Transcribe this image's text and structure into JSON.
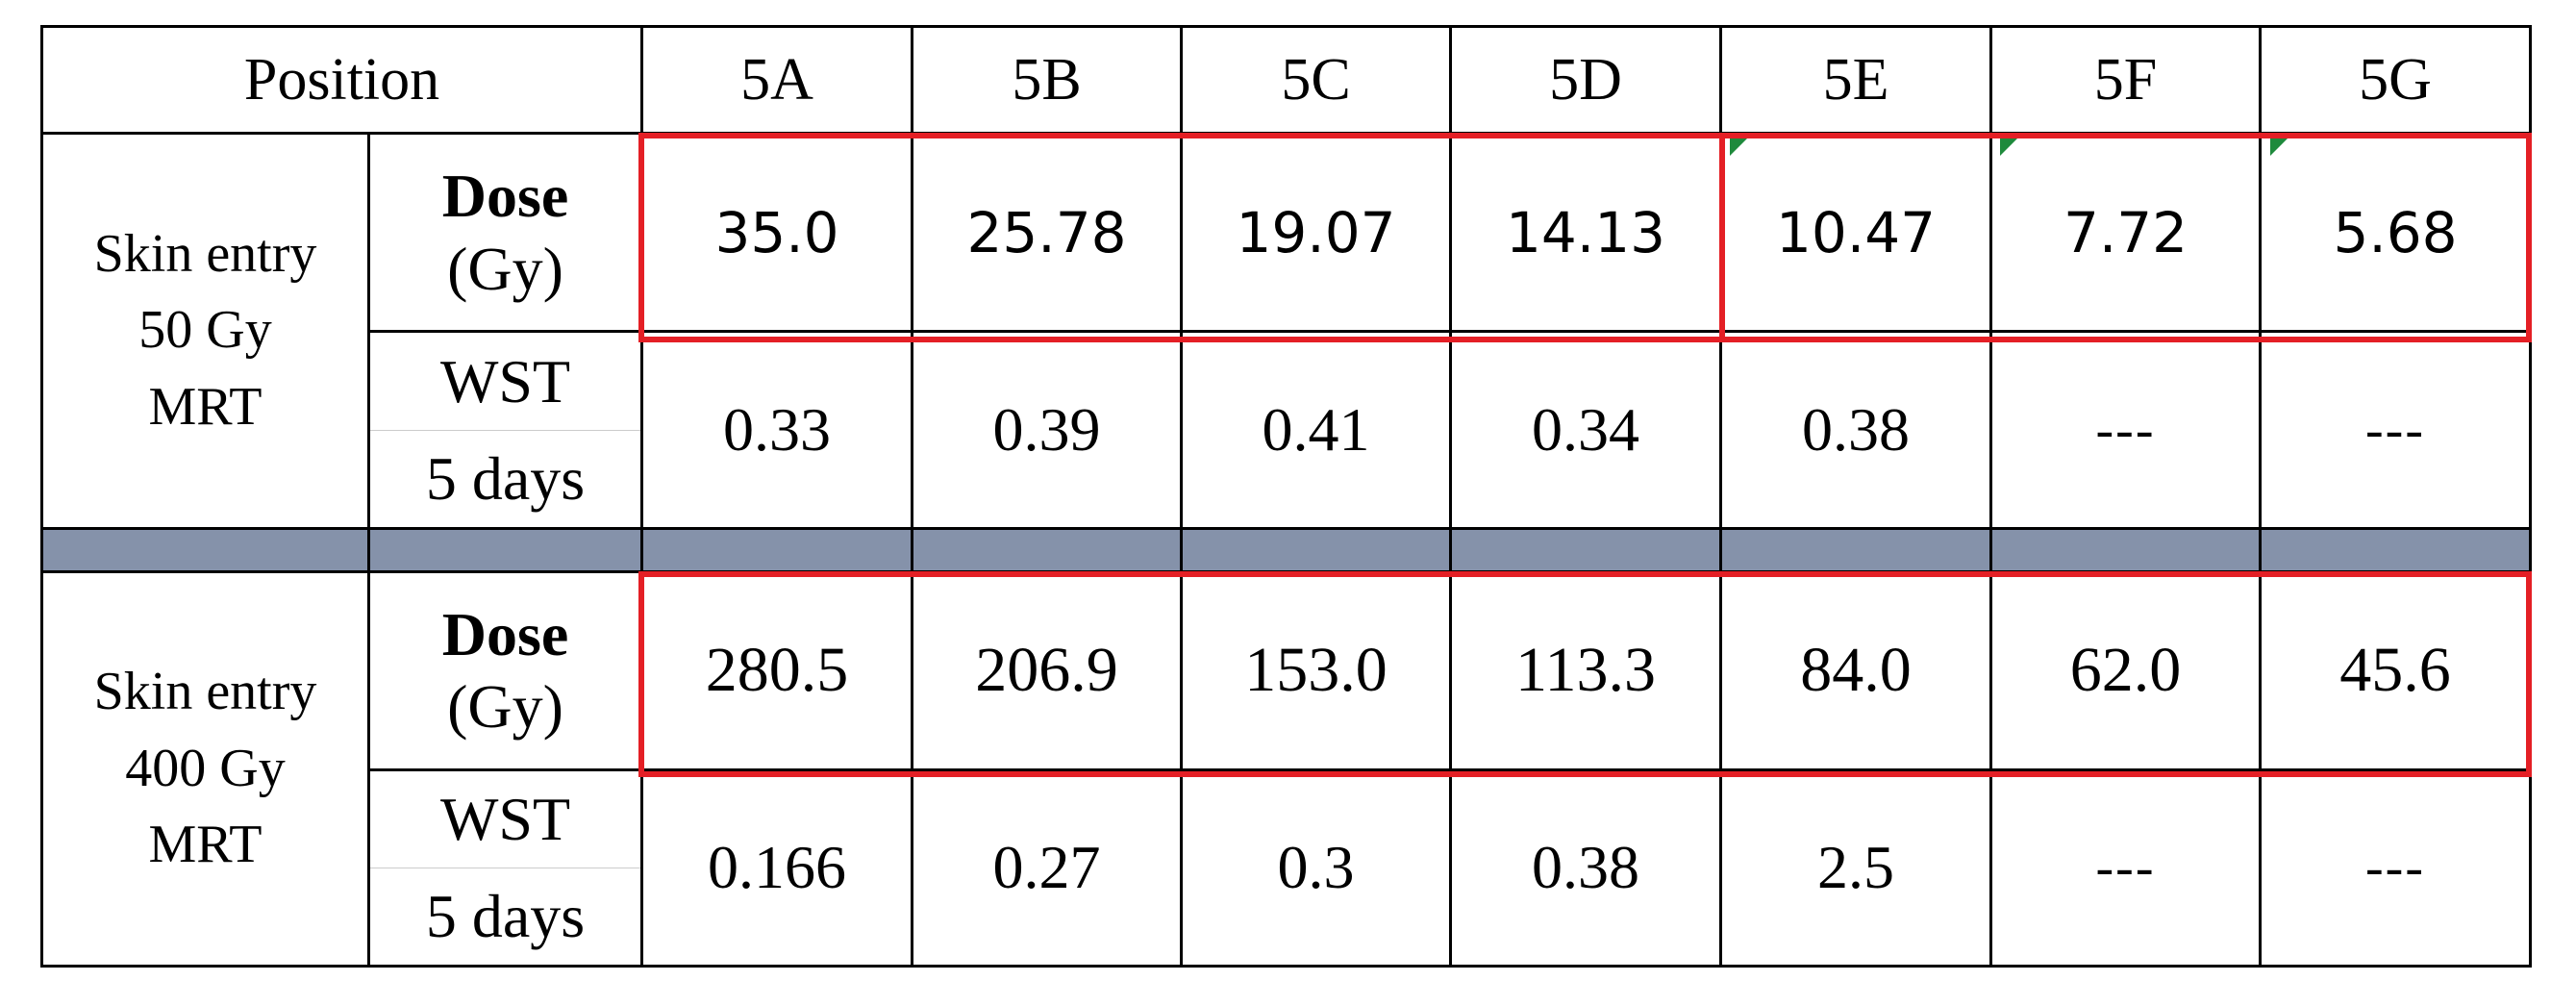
{
  "header": {
    "position_label": "Position",
    "columns": [
      "5A",
      "5B",
      "5C",
      "5D",
      "5E",
      "5F",
      "5G"
    ]
  },
  "groups": [
    {
      "label_lines": [
        "Skin entry",
        "50 Gy",
        "MRT"
      ],
      "dose_label": [
        "Dose",
        "(Gy)"
      ],
      "wst_label": [
        "WST",
        "5 days"
      ],
      "dose": [
        "35.0",
        "25.78",
        "19.07",
        "14.13",
        "10.47",
        "7.72",
        "5.68"
      ],
      "wst": [
        "0.33",
        "0.39",
        "0.41",
        "0.34",
        "0.38",
        "---",
        "---"
      ]
    },
    {
      "label_lines": [
        "Skin entry",
        "400 Gy",
        "MRT"
      ],
      "dose_label": [
        "Dose",
        "(Gy)"
      ],
      "wst_label": [
        "WST",
        "5 days"
      ],
      "dose": [
        "280.5",
        "206.9",
        "153.0",
        "113.3",
        "84.0",
        "62.0",
        "45.6"
      ],
      "wst": [
        "0.166",
        "0.27",
        "0.3",
        "0.38",
        "2.5",
        "---",
        "---"
      ]
    }
  ],
  "colors": {
    "separator": "#8592aa",
    "highlight_border": "#e41f25",
    "cell_marker": "#1e8a3c"
  }
}
